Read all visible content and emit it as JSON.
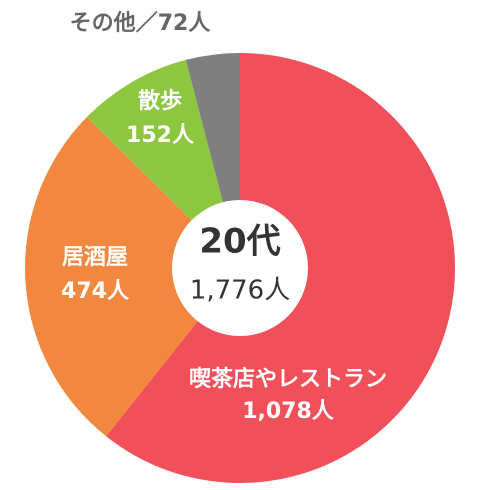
{
  "chart_data": {
    "type": "donut",
    "categories": [
      "喫茶店やレストラン",
      "居酒屋",
      "散歩",
      "その他"
    ],
    "values": [
      1078,
      474,
      152,
      72
    ],
    "value_labels": [
      "1,078人",
      "474人",
      "152人",
      "／72人"
    ],
    "colors": [
      "#f1505b",
      "#f2883f",
      "#8dc63f",
      "#7f7f7f"
    ],
    "center_title": "20代",
    "center_total": {
      "value": 1776,
      "label": "1,776人"
    }
  }
}
